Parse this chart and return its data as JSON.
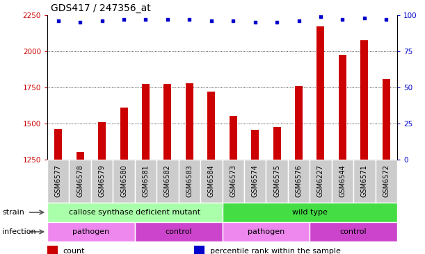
{
  "title": "GDS417 / 247356_at",
  "samples": [
    "GSM6577",
    "GSM6578",
    "GSM6579",
    "GSM6580",
    "GSM6581",
    "GSM6582",
    "GSM6583",
    "GSM6584",
    "GSM6573",
    "GSM6574",
    "GSM6575",
    "GSM6576",
    "GSM6227",
    "GSM6544",
    "GSM6571",
    "GSM6572"
  ],
  "counts": [
    1460,
    1305,
    1510,
    1610,
    1775,
    1775,
    1780,
    1720,
    1555,
    1455,
    1475,
    1760,
    2175,
    1975,
    2075,
    1810
  ],
  "percentiles": [
    96,
    95,
    96,
    97,
    97,
    97,
    97,
    96,
    96,
    95,
    95,
    96,
    99,
    97,
    98,
    97
  ],
  "ylim_left": [
    1250,
    2250
  ],
  "yticks_left": [
    1250,
    1500,
    1750,
    2000,
    2250
  ],
  "ylim_right": [
    0,
    100
  ],
  "yticks_right": [
    0,
    25,
    50,
    75,
    100
  ],
  "bar_color": "#cc0000",
  "dot_color": "#0000cc",
  "bar_width": 0.35,
  "strain_groups": [
    {
      "label": "callose synthase deficient mutant",
      "start": 0,
      "end": 7,
      "color": "#aaffaa"
    },
    {
      "label": "wild type",
      "start": 8,
      "end": 15,
      "color": "#44dd44"
    }
  ],
  "infection_groups": [
    {
      "label": "pathogen",
      "start": 0,
      "end": 3,
      "color": "#ee88ee"
    },
    {
      "label": "control",
      "start": 4,
      "end": 7,
      "color": "#cc44cc"
    },
    {
      "label": "pathogen",
      "start": 8,
      "end": 11,
      "color": "#ee88ee"
    },
    {
      "label": "control",
      "start": 12,
      "end": 15,
      "color": "#cc44cc"
    }
  ],
  "legend_items": [
    {
      "label": "count",
      "color": "#cc0000"
    },
    {
      "label": "percentile rank within the sample",
      "color": "#0000cc"
    }
  ],
  "left_axis_color": "#cc0000",
  "right_axis_color": "#0000cc",
  "sample_label_fontsize": 7,
  "title_fontsize": 10,
  "row_label_fontsize": 8,
  "group_label_fontsize": 8,
  "legend_fontsize": 8,
  "axis_tick_fontsize": 7.5,
  "sample_bg_color": "#cccccc",
  "figure_bg": "#ffffff"
}
